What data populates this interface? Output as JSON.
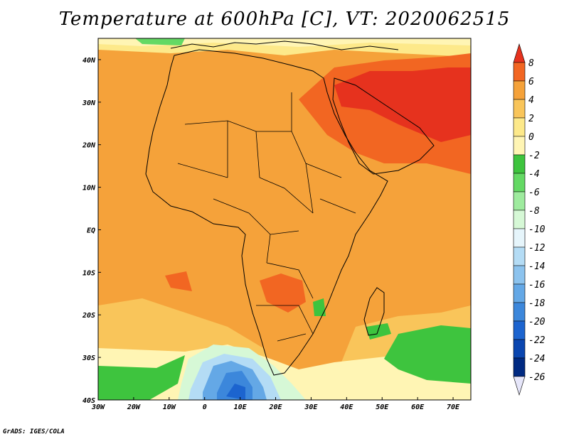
{
  "title": "Temperature at 600hPa [C], VT: 2020062515",
  "footer": "GrADS: IGES/COLA",
  "map": {
    "lon_range": [
      -30,
      75
    ],
    "lat_range": [
      -40,
      45
    ],
    "lon_ticks": [
      "30W",
      "20W",
      "10W",
      "0",
      "10E",
      "20E",
      "30E",
      "40E",
      "50E",
      "60E",
      "70E"
    ],
    "lat_ticks": [
      "40N",
      "30N",
      "20N",
      "10N",
      "EQ",
      "10S",
      "20S",
      "30S",
      "40S"
    ],
    "background_level_color": "#f5a23a"
  },
  "colorbar": {
    "labels": [
      "8",
      "6",
      "4",
      "2",
      "0",
      "-2",
      "-4",
      "-6",
      "-8",
      "-10",
      "-12",
      "-14",
      "-16",
      "-18",
      "-20",
      "-22",
      "-24",
      "-26"
    ],
    "colors": [
      "#e6321e",
      "#f26622",
      "#f5a23a",
      "#f9c55a",
      "#fde98a",
      "#fff5b4",
      "#3ec43e",
      "#64d964",
      "#9eeb9e",
      "#d6f8d6",
      "#e6f5fb",
      "#b4dcf5",
      "#8cc3ee",
      "#64a8e6",
      "#3c87db",
      "#1c64cf",
      "#0a46b0",
      "#002a82",
      "#e6e6fa"
    ]
  },
  "chart_data": {
    "type": "heatmap",
    "title": "Temperature at 600hPa [C], VT: 2020062515",
    "x_range": [
      -30,
      75
    ],
    "y_range": [
      -40,
      45
    ],
    "x_ticks": [
      "30W",
      "20W",
      "10W",
      "0",
      "10E",
      "20E",
      "30E",
      "40E",
      "50E",
      "60E",
      "70E"
    ],
    "y_ticks": [
      "40N",
      "30N",
      "20N",
      "10N",
      "EQ",
      "10S",
      "20S",
      "30S",
      "40S"
    ],
    "color_levels": [
      8,
      6,
      4,
      2,
      0,
      -2,
      -4,
      -6,
      -8,
      -10,
      -12,
      -14,
      -16,
      -18,
      -20,
      -22,
      -24,
      -26
    ]
  }
}
